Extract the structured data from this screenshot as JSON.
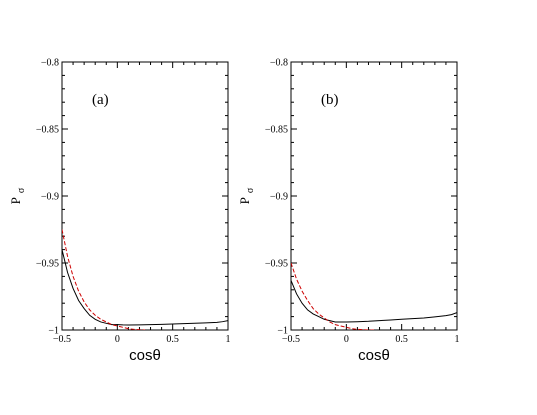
{
  "chart_data": [
    {
      "type": "line",
      "panel_label": "(a)",
      "xlabel": "cosθ",
      "ylabel_main": "P",
      "ylabel_sub": "σ",
      "xlim": [
        -0.5,
        1
      ],
      "ylim": [
        -1,
        -0.8
      ],
      "xticks": [
        -0.5,
        0,
        0.5,
        1
      ],
      "xtick_labels": [
        "−0.5",
        "0",
        "0.5",
        "1"
      ],
      "yticks": [
        -1,
        -0.95,
        -0.9,
        -0.85,
        -0.8
      ],
      "ytick_labels": [
        "−1",
        "−0.95",
        "−0.9",
        "−0.85",
        "−0.8"
      ],
      "grid": false,
      "series": [
        {
          "style": "solid",
          "color": "#000000",
          "x": [
            -0.5,
            -0.45,
            -0.4,
            -0.35,
            -0.3,
            -0.25,
            -0.2,
            -0.15,
            -0.1,
            -0.05,
            0,
            0.05,
            0.1,
            0.2,
            0.3,
            0.4,
            0.5,
            0.6,
            0.7,
            0.8,
            0.9,
            0.95,
            1.0
          ],
          "y": [
            -0.94,
            -0.957,
            -0.969,
            -0.978,
            -0.984,
            -0.989,
            -0.992,
            -0.994,
            -0.995,
            -0.996,
            -0.996,
            -0.9962,
            -0.9963,
            -0.9962,
            -0.996,
            -0.9958,
            -0.9955,
            -0.9952,
            -0.995,
            -0.9947,
            -0.9943,
            -0.9938,
            -0.993
          ]
        },
        {
          "style": "dashed",
          "color": "#cc0000",
          "x": [
            -0.5,
            -0.45,
            -0.4,
            -0.35,
            -0.3,
            -0.25,
            -0.2,
            -0.15,
            -0.1,
            -0.05,
            0,
            0.05,
            0.1,
            0.15,
            0.2,
            0.25
          ],
          "y": [
            -0.925,
            -0.945,
            -0.96,
            -0.971,
            -0.979,
            -0.985,
            -0.989,
            -0.992,
            -0.994,
            -0.996,
            -0.997,
            -0.998,
            -0.999,
            -0.9995,
            -0.9998,
            -1.0
          ]
        }
      ]
    },
    {
      "type": "line",
      "panel_label": "(b)",
      "xlabel": "cosθ",
      "ylabel_main": "P",
      "ylabel_sub": "σ",
      "xlim": [
        -0.5,
        1
      ],
      "ylim": [
        -1,
        -0.8
      ],
      "xticks": [
        -0.5,
        0,
        0.5,
        1
      ],
      "xtick_labels": [
        "−0.5",
        "0",
        "0.5",
        "1"
      ],
      "yticks": [
        -1,
        -0.95,
        -0.9,
        -0.85,
        -0.8
      ],
      "ytick_labels": [
        "−1",
        "−0.95",
        "−0.9",
        "−0.85",
        "−0.8"
      ],
      "grid": false,
      "series": [
        {
          "style": "solid",
          "color": "#000000",
          "x": [
            -0.5,
            -0.45,
            -0.4,
            -0.35,
            -0.3,
            -0.25,
            -0.2,
            -0.15,
            -0.1,
            -0.05,
            0,
            0.1,
            0.2,
            0.3,
            0.4,
            0.5,
            0.6,
            0.7,
            0.8,
            0.9,
            0.95,
            1.0
          ],
          "y": [
            -0.963,
            -0.973,
            -0.98,
            -0.985,
            -0.988,
            -0.99,
            -0.992,
            -0.993,
            -0.994,
            -0.994,
            -0.994,
            -0.9938,
            -0.9935,
            -0.993,
            -0.9925,
            -0.992,
            -0.9915,
            -0.991,
            -0.9902,
            -0.9893,
            -0.9885,
            -0.987
          ]
        },
        {
          "style": "dashed",
          "color": "#cc0000",
          "x": [
            -0.5,
            -0.45,
            -0.4,
            -0.35,
            -0.3,
            -0.25,
            -0.2,
            -0.15,
            -0.1,
            -0.05,
            0,
            0.05,
            0.1,
            0.15,
            0.2,
            0.25
          ],
          "y": [
            -0.95,
            -0.962,
            -0.971,
            -0.978,
            -0.984,
            -0.988,
            -0.991,
            -0.994,
            -0.996,
            -0.997,
            -0.998,
            -0.999,
            -0.9995,
            -0.9998,
            -1.0,
            -1.0
          ]
        }
      ]
    }
  ]
}
